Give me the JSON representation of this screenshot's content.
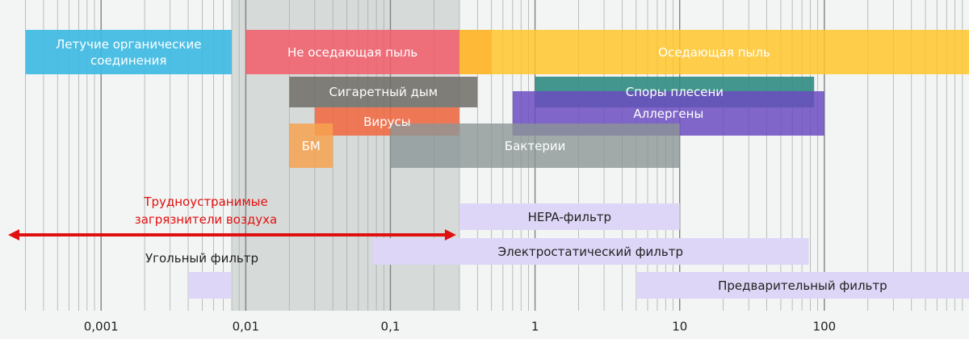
{
  "chart_data": {
    "type": "range",
    "xscale": "log",
    "xlim": [
      0.0002,
      1000
    ],
    "xticks": [
      {
        "value": 0.001,
        "label": "0,001"
      },
      {
        "value": 0.01,
        "label": "0,01"
      },
      {
        "value": 0.1,
        "label": "0,1"
      },
      1,
      10,
      100
    ],
    "xminor": [
      0.0003,
      0.0004,
      0.0005,
      0.0006,
      0.0007,
      0.0008,
      0.0009,
      0.002,
      0.003,
      0.004,
      0.005,
      0.006,
      0.007,
      0.008,
      0.009,
      0.02,
      0.03,
      0.04,
      0.05,
      0.06,
      0.07,
      0.08,
      0.09,
      0.2,
      0.3,
      0.4,
      0.5,
      0.6,
      0.7,
      0.8,
      0.9,
      2,
      3,
      4,
      5,
      6,
      7,
      8,
      9,
      20,
      30,
      40,
      50,
      60,
      70,
      80,
      90,
      200,
      300,
      400,
      500,
      600,
      700,
      800,
      900
    ],
    "grid": true,
    "shaded_region": [
      0.008,
      0.3
    ],
    "series": [
      {
        "name": "Летучие органические соединения",
        "start": 0.0003,
        "end": 0.008,
        "color": "#3cb9e2",
        "label_color": "#ffffff"
      },
      {
        "name": "Не оседающая пыль",
        "start": 0.01,
        "end": 0.5,
        "color": "#f25a68",
        "label_color": "#ffffff"
      },
      {
        "name": "Оседающая пыль",
        "start": 0.3,
        "end": 1000,
        "color": "#ffc62a",
        "label_color": "#ffffff"
      },
      {
        "name": "Сигаретный дым",
        "start": 0.02,
        "end": 0.4,
        "color": "#6e6c66",
        "label_color": "#ffffff"
      },
      {
        "name": "Споры плесени",
        "start": 1,
        "end": 85,
        "color": "#2f8c82",
        "label_color": "#ffffff"
      },
      {
        "name": "Вирусы",
        "start": 0.03,
        "end": 0.3,
        "color": "#f2663e",
        "label_color": "#ffffff"
      },
      {
        "name": "Аллергены",
        "start": 0.7,
        "end": 100,
        "color": "#6a4cc0",
        "label_color": "#ffffff"
      },
      {
        "name": "БМ",
        "start": 0.02,
        "end": 0.04,
        "color": "#f7a250",
        "label_color": "#ffffff"
      },
      {
        "name": "Бактерии",
        "start": 0.1,
        "end": 10,
        "color": "#8c9696",
        "label_color": "#ffffff"
      },
      {
        "name": "HEPA-фильтр",
        "start": 0.3,
        "end": 10,
        "color": "#ddd6f6",
        "label_color": "#222222"
      },
      {
        "name": "Электростатический фильтр",
        "start": 0.075,
        "end": 78,
        "color": "#ddd6f6",
        "label_color": "#222222"
      },
      {
        "name": "Угольный фильтр",
        "start": 0.004,
        "end": 0.008,
        "color": "#ddd6f6",
        "label_color": "#222222"
      },
      {
        "name": "Предварительный фильтр",
        "start": 5,
        "end": 1000,
        "color": "#ddd6f6",
        "label_color": "#222222"
      }
    ],
    "annotation": {
      "text": "Трудноустранимые загрязнители воздуха",
      "range": [
        0.0002,
        0.3
      ],
      "color": "#e01010"
    }
  }
}
